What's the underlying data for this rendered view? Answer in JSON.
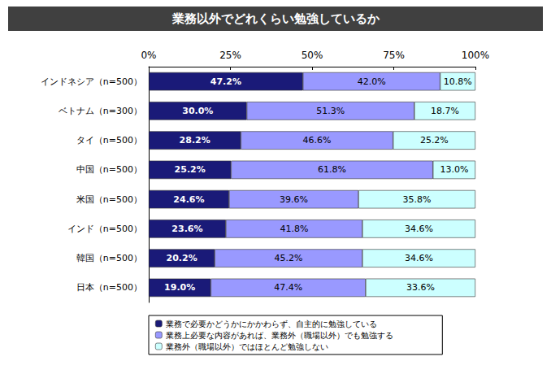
{
  "chart_data": {
    "type": "bar",
    "title": "業務以外でどれくらい勉強しているか",
    "orientation": "horizontal",
    "stacked": true,
    "data_labels": true,
    "grid": false,
    "legend": "bottom",
    "categories": [
      "インドネシア（n=500）",
      "ベトナム（n=300）",
      "タイ（n=500）",
      "中国（n=500）",
      "米国（n=500）",
      "インド（n=500）",
      "韓国（n=500）",
      "日本（n=500）"
    ],
    "series": [
      {
        "name": "業務で必要かどうかにかかわらず、自主的に勉強している",
        "color": "#1a1a78",
        "values": [
          47.2,
          30.0,
          28.2,
          25.2,
          24.6,
          23.6,
          20.2,
          19.0
        ],
        "value_labels": [
          "47.2%",
          "30.0%",
          "28.2%",
          "25.2%",
          "24.6%",
          "23.6%",
          "20.2%",
          "19.0%"
        ]
      },
      {
        "name": "業務上必要な内容があれば、業務外（職場以外）でも勉強する",
        "color": "#9999ff",
        "values": [
          42.0,
          51.3,
          46.6,
          61.8,
          39.6,
          41.8,
          45.2,
          47.4
        ],
        "value_labels": [
          "42.0%",
          "51.3%",
          "46.6%",
          "61.8%",
          "39.6%",
          "41.8%",
          "45.2%",
          "47.4%"
        ]
      },
      {
        "name": "業務外（職場以外）ではほとんど勉強しない",
        "color": "#ccffff",
        "values": [
          10.8,
          18.7,
          25.2,
          13.0,
          35.8,
          34.6,
          34.6,
          33.6
        ],
        "value_labels": [
          "10.8%",
          "18.7%",
          "25.2%",
          "13.0%",
          "35.8%",
          "34.6%",
          "34.6%",
          "33.6%"
        ]
      }
    ],
    "xlim": [
      0,
      100
    ],
    "xticks": [
      {
        "value": 0,
        "label": "0%"
      },
      {
        "value": 25,
        "label": "25%"
      },
      {
        "value": 50,
        "label": "50%"
      },
      {
        "value": 75,
        "label": "75%"
      },
      {
        "value": 100,
        "label": "100%"
      }
    ]
  }
}
